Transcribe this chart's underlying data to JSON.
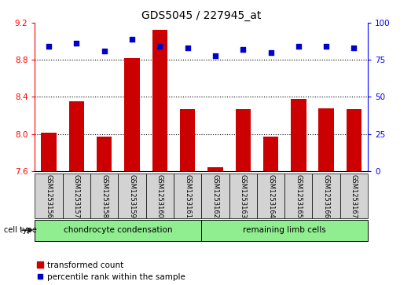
{
  "title": "GDS5045 / 227945_at",
  "samples": [
    "GSM1253156",
    "GSM1253157",
    "GSM1253158",
    "GSM1253159",
    "GSM1253160",
    "GSM1253161",
    "GSM1253162",
    "GSM1253163",
    "GSM1253164",
    "GSM1253165",
    "GSM1253166",
    "GSM1253167"
  ],
  "transformed_counts": [
    8.01,
    8.35,
    7.97,
    8.82,
    9.12,
    8.27,
    7.64,
    8.27,
    7.97,
    8.38,
    8.28,
    8.27
  ],
  "percentile_ranks": [
    84,
    86,
    81,
    89,
    84,
    83,
    78,
    82,
    80,
    84,
    84,
    83
  ],
  "ylim_left": [
    7.6,
    9.2
  ],
  "ylim_right": [
    0,
    100
  ],
  "yticks_left": [
    7.6,
    8.0,
    8.4,
    8.8,
    9.2
  ],
  "yticks_right": [
    0,
    25,
    50,
    75,
    100
  ],
  "bar_color": "#cc0000",
  "dot_color": "#0000cc",
  "group1_label": "chondrocyte condensation",
  "group2_label": "remaining limb cells",
  "group1_count": 6,
  "group2_count": 6,
  "legend_bar_label": "transformed count",
  "legend_dot_label": "percentile rank within the sample",
  "cell_type_label": "cell type",
  "group_bg_color": "#90ee90",
  "sample_bg_color": "#d3d3d3",
  "title_fontsize": 10,
  "tick_fontsize": 7.5,
  "sample_fontsize": 6,
  "group_fontsize": 7.5,
  "legend_fontsize": 7.5
}
